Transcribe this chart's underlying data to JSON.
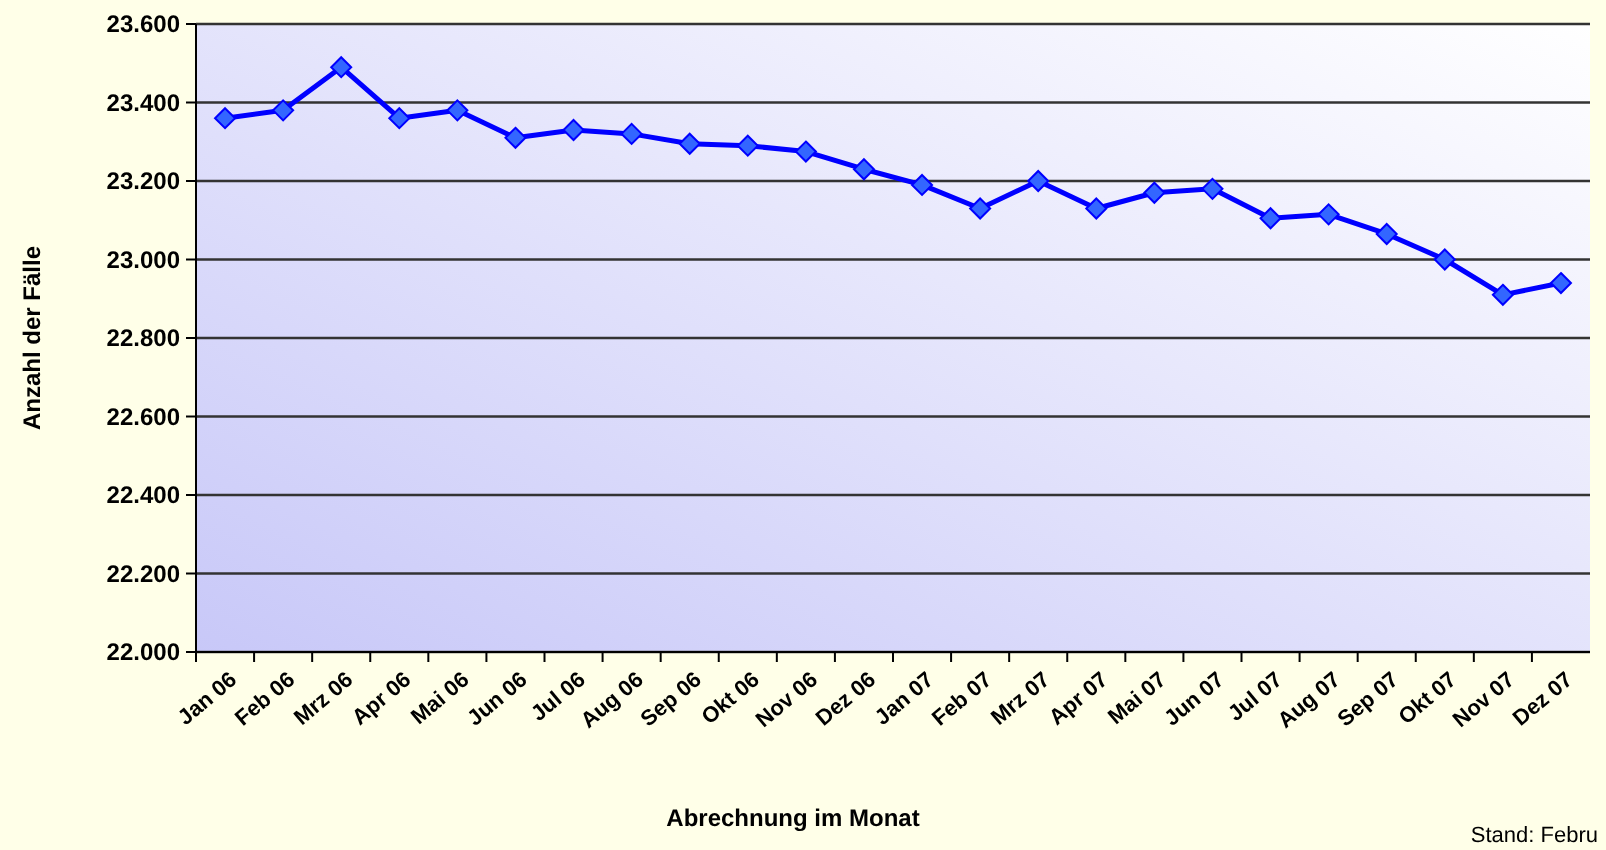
{
  "chart_data": {
    "type": "line",
    "xlabel": "Abrechnung im Monat",
    "ylabel": "Anzahl der Fälle",
    "categories": [
      "Jan 06",
      "Feb 06",
      "Mrz 06",
      "Apr 06",
      "Mai 06",
      "Jun 06",
      "Jul 06",
      "Aug 06",
      "Sep 06",
      "Okt 06",
      "Nov 06",
      "Dez 06",
      "Jan 07",
      "Feb 07",
      "Mrz 07",
      "Apr 07",
      "Mai 07",
      "Jun 07",
      "Jul 07",
      "Aug 07",
      "Sep 07",
      "Okt 07",
      "Nov 07",
      "Dez 07"
    ],
    "series": [
      {
        "color": "#0000ff",
        "values": [
          23360,
          23380,
          23490,
          23360,
          23380,
          23310,
          23330,
          23320,
          23295,
          23290,
          23275,
          23230,
          23190,
          23130,
          23200,
          23130,
          23170,
          23180,
          23105,
          23115,
          23065,
          23000,
          22910,
          22940
        ]
      }
    ],
    "ylim": [
      22000,
      23600
    ],
    "yticks": [
      {
        "value": 22000,
        "label": "22.000"
      },
      {
        "value": 22200,
        "label": "22.200"
      },
      {
        "value": 22400,
        "label": "22.400"
      },
      {
        "value": 22600,
        "label": "22.600"
      },
      {
        "value": 22800,
        "label": "22.800"
      },
      {
        "value": 23000,
        "label": "23.000"
      },
      {
        "value": 23200,
        "label": "23.200"
      },
      {
        "value": 23400,
        "label": "23.400"
      },
      {
        "value": 23600,
        "label": "23.600"
      }
    ],
    "grid": "y",
    "marker": "diamond",
    "line_style": "solid",
    "annotations": [
      "Stand: Febru"
    ]
  }
}
